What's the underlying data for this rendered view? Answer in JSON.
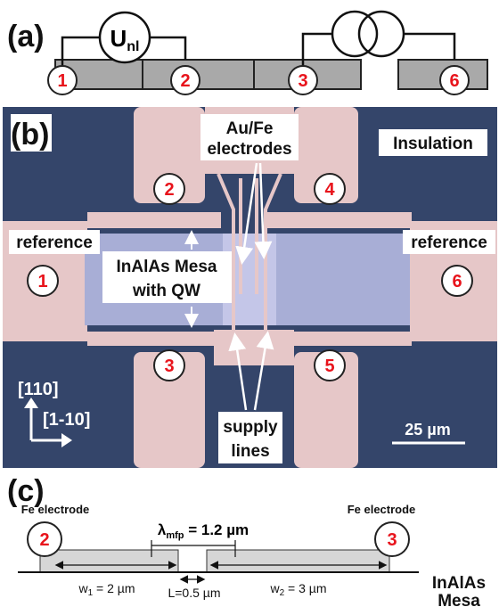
{
  "panels": {
    "a": {
      "label": "(a)",
      "voltmeter": {
        "symbol": "U",
        "sub": "nl"
      },
      "contacts": [
        "1",
        "2",
        "3",
        "6"
      ]
    },
    "b": {
      "label": "(b)",
      "electrodes": [
        "Au/Fe",
        "electrodes"
      ],
      "insulation": "Insulation",
      "reference_left": "reference",
      "reference_right": "reference",
      "mesa": [
        "InAlAs Mesa",
        "with QW"
      ],
      "supply": [
        "supply",
        "lines"
      ],
      "direction_up": "[110]",
      "direction_right": "[1-10]",
      "scale": "25 µm",
      "contacts": [
        "2",
        "4",
        "1",
        "6",
        "3",
        "5"
      ]
    },
    "c": {
      "label": "(c)",
      "fe_left": "Fe electrode",
      "fe_right": "Fe electrode",
      "contacts": [
        "2",
        "3"
      ],
      "lambda": {
        "symbol": "λ",
        "sub": "mfp",
        "rest": " = 1.2 µm"
      },
      "w1": {
        "symbol": "w",
        "sub": "1",
        "rest": " = 2 µm"
      },
      "gap": "L=0.5 µm",
      "w2": {
        "symbol": "w",
        "sub": "2",
        "rest": " = 3 µm"
      },
      "mesa": [
        "InAlAs",
        "Mesa"
      ]
    }
  }
}
